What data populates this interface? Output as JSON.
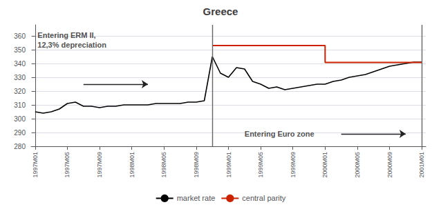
{
  "chart_data": {
    "type": "line",
    "title": "Greece",
    "xlim": [
      -0.5,
      48.5
    ],
    "xticks": [
      {
        "value": 0,
        "label": "1997M01"
      },
      {
        "value": 4,
        "label": "1997M05"
      },
      {
        "value": 8,
        "label": "1997M09"
      },
      {
        "value": 12,
        "label": "1998M01"
      },
      {
        "value": 16,
        "label": "1998M05"
      },
      {
        "value": 20,
        "label": "1998M09"
      },
      {
        "value": 24,
        "label": "1999M01"
      },
      {
        "value": 28,
        "label": "1999M05"
      },
      {
        "value": 32,
        "label": "1999M09"
      },
      {
        "value": 36,
        "label": "2000M01"
      },
      {
        "value": 40,
        "label": "2000M05"
      },
      {
        "value": 44,
        "label": "2000M09"
      },
      {
        "value": 48,
        "label": "2001M01"
      }
    ],
    "ylim": [
      280,
      368
    ],
    "yticks": [
      280,
      290,
      300,
      310,
      320,
      330,
      340,
      350,
      360
    ],
    "grid": true,
    "legend": "bottom",
    "series": [
      {
        "name": "market rate",
        "color": "#000000",
        "x": [
          0,
          1,
          2,
          3,
          4,
          5,
          6,
          7,
          8,
          9,
          10,
          11,
          12,
          13,
          14,
          15,
          16,
          17,
          18,
          19,
          20,
          21,
          22,
          23,
          24,
          25,
          26,
          27,
          28,
          29,
          30,
          31,
          32,
          33,
          34,
          35,
          36,
          37,
          38,
          39,
          40,
          41,
          42,
          43,
          44,
          45,
          46,
          47,
          48
        ],
        "values": [
          305,
          304,
          305,
          307,
          311,
          312,
          309,
          309,
          308,
          309,
          309,
          310,
          310,
          310,
          310,
          311,
          311,
          311,
          311,
          312,
          312,
          313,
          345,
          333,
          330,
          337,
          336,
          327,
          325,
          322,
          323,
          321,
          322,
          323,
          324,
          325,
          325,
          327,
          328,
          330,
          331,
          332,
          334,
          336,
          338,
          339,
          340,
          341,
          341
        ]
      },
      {
        "name": "central parity",
        "color": "#cc2200",
        "x": [
          22,
          36,
          36,
          48
        ],
        "values": [
          353,
          353,
          340.75,
          340.75
        ]
      }
    ],
    "vlines": [
      {
        "x": 22,
        "color": "#666666"
      },
      {
        "x": 48,
        "color": "#666666"
      }
    ],
    "annotations": [
      {
        "text": "Entering ERM II,\n12,3% depreciation",
        "x": 0.3,
        "y": 364,
        "color": "#222222"
      },
      {
        "text": "Entering Euro zone",
        "x": 26,
        "y": 289,
        "color": "#222222"
      }
    ],
    "arrows": [
      {
        "x_start": 6,
        "x_end": 14,
        "y": 325,
        "color": "#222222"
      },
      {
        "x_start": 38,
        "x_end": 46,
        "y": 289,
        "color": "#222222"
      }
    ]
  }
}
